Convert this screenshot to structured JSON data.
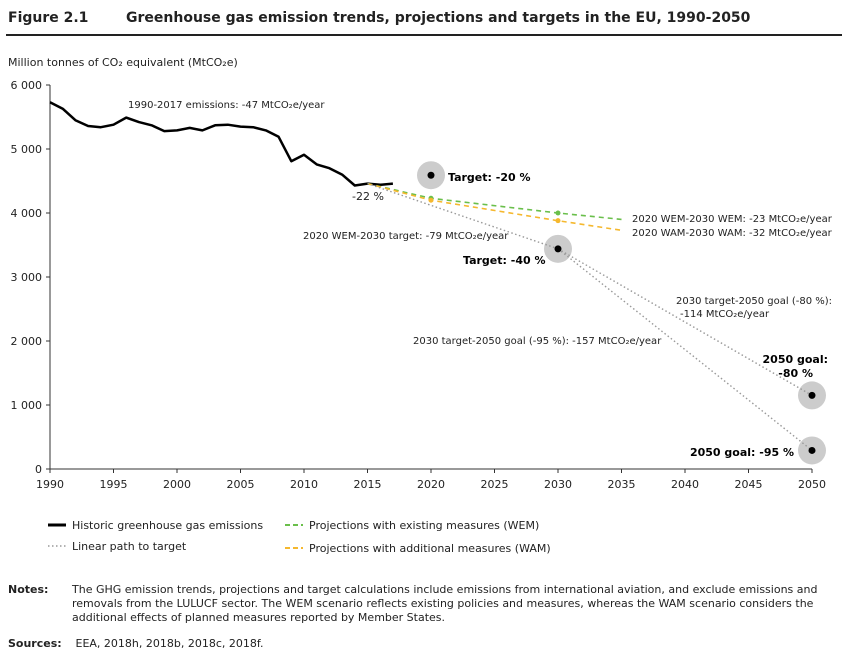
{
  "figure": {
    "number": "Figure 2.1",
    "title": "Greenhouse gas emission trends, projections and targets in the EU, 1990-2050"
  },
  "y_axis_label": "Million tonnes of CO₂ equivalent (MtCO₂e)",
  "chart_data": {
    "type": "line",
    "ylim": [
      0,
      6000
    ],
    "xlim": [
      1990,
      2050
    ],
    "x_ticks": [
      1990,
      1995,
      2000,
      2005,
      2010,
      2015,
      2020,
      2025,
      2030,
      2035,
      2040,
      2045,
      2050
    ],
    "x_tick_labels": [
      "1990",
      "1995",
      "2000",
      "2005",
      "2010",
      "2015",
      "2020",
      "2025",
      "2030",
      "2035",
      "2040",
      "2045",
      "2050"
    ],
    "y_ticks": [
      0,
      1000,
      2000,
      3000,
      4000,
      5000,
      6000
    ],
    "y_tick_labels": [
      "0",
      "1 000",
      "2 000",
      "3 000",
      "4 000",
      "5 000",
      "6 000"
    ],
    "grid": false,
    "colors": {
      "historic": "#000000",
      "wem": "#6abf4b",
      "wam": "#f5b82e",
      "linear": "#999999",
      "target_circle": "#cccccc"
    },
    "series": [
      {
        "name": "Historic greenhouse gas emissions",
        "key": "historic",
        "x": [
          1990,
          1991,
          1992,
          1993,
          1994,
          1995,
          1996,
          1997,
          1998,
          1999,
          2000,
          2001,
          2002,
          2003,
          2004,
          2005,
          2006,
          2007,
          2008,
          2009,
          2010,
          2011,
          2012,
          2013,
          2014,
          2015,
          2016,
          2017
        ],
        "y": [
          5730,
          5630,
          5450,
          5360,
          5340,
          5380,
          5490,
          5420,
          5370,
          5280,
          5290,
          5330,
          5290,
          5370,
          5380,
          5350,
          5340,
          5290,
          5190,
          4810,
          4910,
          4760,
          4700,
          4600,
          4430,
          4460,
          4440,
          4460
        ]
      },
      {
        "name": "Projections with existing measures (WEM)",
        "key": "wem",
        "x": [
          2015,
          2020,
          2030,
          2035
        ],
        "y": [
          4460,
          4230,
          4000,
          3900
        ]
      },
      {
        "name": "Projections with additional measures (WAM)",
        "key": "wam",
        "x": [
          2015,
          2020,
          2030,
          2035
        ],
        "y": [
          4460,
          4200,
          3880,
          3730
        ]
      },
      {
        "name": "Linear path to target",
        "key": "linear_2030",
        "x": [
          2015,
          2030
        ],
        "y": [
          4460,
          3440
        ]
      },
      {
        "key": "linear_80",
        "x": [
          2030,
          2050
        ],
        "y": [
          3440,
          1150
        ]
      },
      {
        "key": "linear_95",
        "x": [
          2030,
          2050
        ],
        "y": [
          3440,
          290
        ]
      }
    ],
    "targets": [
      {
        "x": 2020,
        "y": 4590,
        "label": "Target: -20 %"
      },
      {
        "x": 2030,
        "y": 3440,
        "label": "Target: -40 %"
      },
      {
        "x": 2050,
        "y": 1150,
        "label_line1": "2050 goal:",
        "label_line2": "-80 %"
      },
      {
        "x": 2050,
        "y": 290,
        "label": "2050 goal: -95 %"
      }
    ],
    "annotations": {
      "emissions_1990_2017": "1990-2017 emissions: -47 MtCO₂e/year",
      "minus_22": "-22 %",
      "wem_2020_2030_target": "2020 WEM-2030 target: -79 MtCO₂e/year",
      "wem_2020_2030": "2020 WEM-2030 WEM: -23 MtCO₂e/year",
      "wam_2030_wam": "2020 WAM-2030 WAM: -32 MtCO₂e/year",
      "goal80_line1": "2030 target-2050 goal (-80 %):",
      "goal80_line2": "-114 MtCO₂e/year",
      "goal95": "2030 target-2050 goal (-95 %): -157 MtCO₂e/year"
    },
    "legend": [
      {
        "label": "Historic greenhouse gas emissions",
        "style": "solid",
        "color": "#000000"
      },
      {
        "label": "Projections with existing measures (WEM)",
        "style": "dashed",
        "color": "#6abf4b"
      },
      {
        "label": "Linear path to target",
        "style": "dotted",
        "color": "#999999"
      },
      {
        "label": "Projections with additional measures (WAM)",
        "style": "dashed",
        "color": "#f5b82e"
      }
    ]
  },
  "notes": {
    "label": "Notes:",
    "text": "The GHG emission trends, projections and target calculations include emissions from international aviation, and exclude emissions and removals from the LULUCF sector. The WEM scenario reflects existing policies and measures, whereas the WAM scenario considers the additional effects of planned measures reported by Member States."
  },
  "sources": {
    "label": "Sources:",
    "text": "EEA, 2018h, 2018b, 2018c, 2018f."
  }
}
